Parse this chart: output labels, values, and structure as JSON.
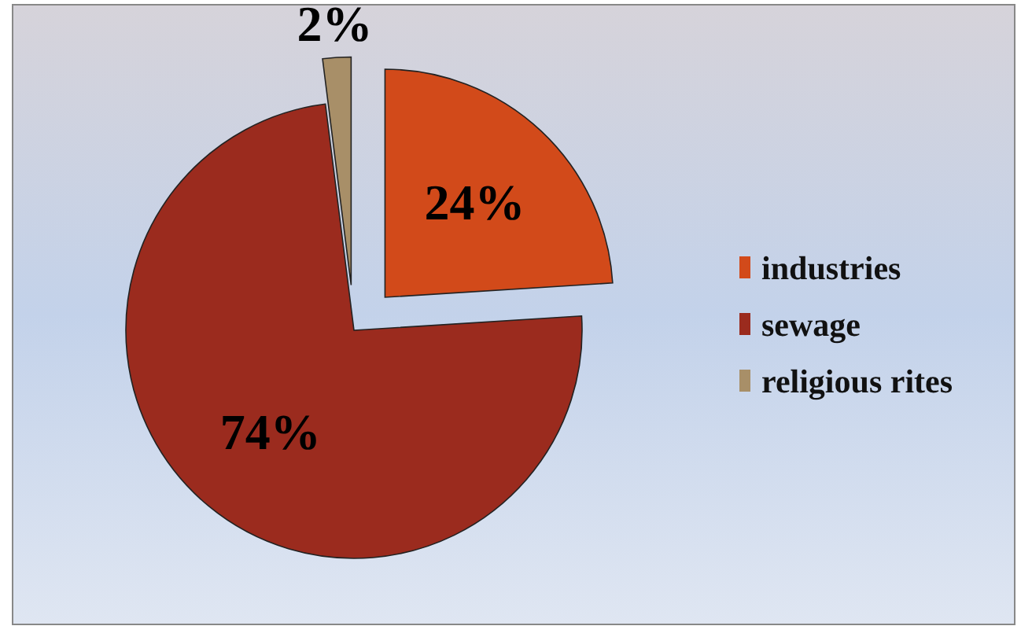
{
  "chart_data": {
    "type": "pie",
    "categories": [
      "industries",
      "sewage",
      "religious rites"
    ],
    "values": [
      24,
      74,
      2
    ],
    "colors": [
      "#d24a1a",
      "#9b2b1e",
      "#a88f68"
    ],
    "value_labels": [
      "24%",
      "74%",
      "2%"
    ],
    "data_labels": true,
    "legend": "right"
  }
}
